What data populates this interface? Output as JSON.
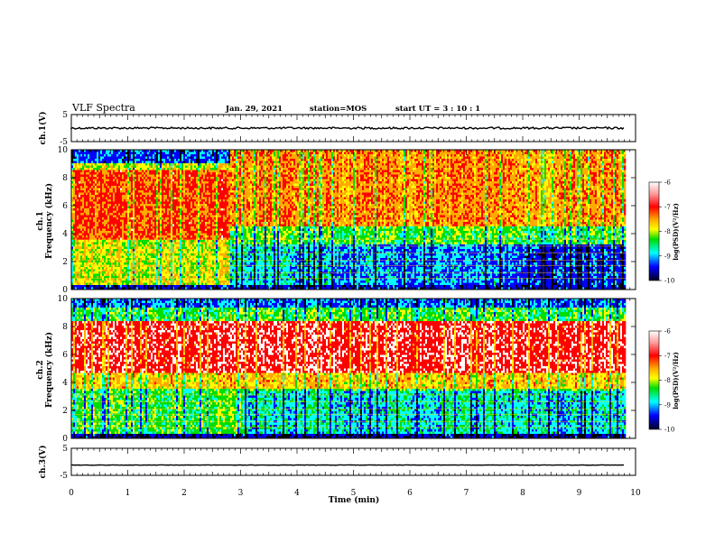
{
  "header": {
    "title": "VLF Spectra",
    "date": "Jan. 29, 2021",
    "station": "station=MOS",
    "start": "start  UT =   3 : 10 : 1"
  },
  "chart_data": [
    {
      "type": "line",
      "name": "ch1-waveform",
      "ylabel": "ch.1(V)",
      "ylim": [
        -5,
        5
      ],
      "yticks": [
        "5",
        "-5"
      ],
      "xlim": [
        0,
        10
      ],
      "baseline": 0
    },
    {
      "type": "heatmap",
      "name": "ch1-spectrogram",
      "ylabel": "ch.1\nFrequency (kHz)",
      "ylabel_line1": "ch.1",
      "ylabel_line2": "Frequency (kHz)",
      "ylim": [
        0,
        10
      ],
      "yticks": [
        "0",
        "2",
        "4",
        "6",
        "8",
        "10"
      ],
      "xlim": [
        0,
        10
      ],
      "colorbar": {
        "label": "log(PSD)(V²/Hz)",
        "range": [
          -10,
          -6
        ],
        "ticks": [
          "-6",
          "-7",
          "-8",
          "-9",
          "-10"
        ]
      }
    },
    {
      "type": "heatmap",
      "name": "ch2-spectrogram",
      "ylabel": "ch.2\nFrequency (kHz)",
      "ylabel_line1": "ch.2",
      "ylabel_line2": "Frequency (kHz)",
      "ylim": [
        0,
        10
      ],
      "yticks": [
        "0",
        "2",
        "4",
        "6",
        "8",
        "10"
      ],
      "xlim": [
        0,
        10
      ],
      "colorbar": {
        "label": "log(PSD)(V²/Hz)",
        "range": [
          -10,
          -6
        ],
        "ticks": [
          "-6",
          "-7",
          "-8",
          "-9",
          "-10"
        ]
      }
    },
    {
      "type": "line",
      "name": "ch3-waveform",
      "ylabel": "ch.3(V)",
      "ylim": [
        -5,
        5
      ],
      "yticks": [
        "5",
        "-5"
      ],
      "xlim": [
        0,
        10
      ],
      "baseline": -1.2
    }
  ],
  "xaxis": {
    "label": "Time  (min)",
    "ticks": [
      "0",
      "1",
      "2",
      "3",
      "4",
      "5",
      "6",
      "7",
      "8",
      "9",
      "10"
    ],
    "range": [
      0,
      10
    ]
  },
  "colors": {
    "palette": [
      "#ffffff",
      "#ff0000",
      "#ffaa00",
      "#ffff00",
      "#00dd00",
      "#00ffff",
      "#0000ff",
      "#000000"
    ]
  }
}
